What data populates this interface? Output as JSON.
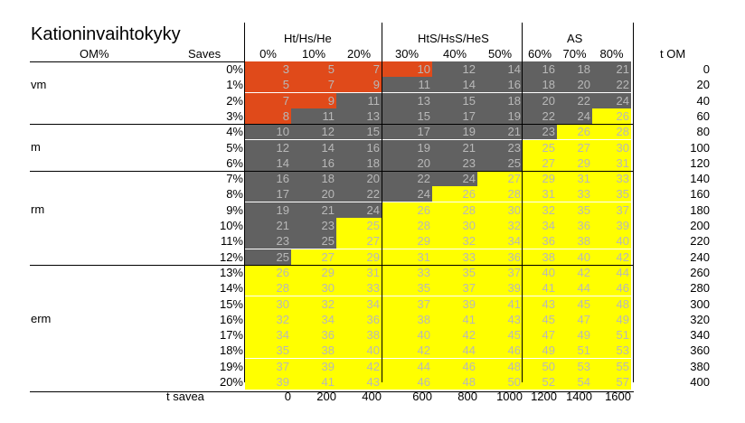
{
  "title": "Kationinvaihtokyky",
  "om_label": "OM%",
  "saves_label": "Saves",
  "t_om_label": "t OM",
  "t_savea_label": "t savea",
  "groups": [
    "Ht/Hs/He",
    "HtS/HsS/HeS",
    "AS"
  ],
  "columns": [
    "0%",
    "10%",
    "20%",
    "30%",
    "40%",
    "50%",
    "60%",
    "70%",
    "80%"
  ],
  "category_labels": [
    "vm",
    "m",
    "rm",
    "erm"
  ],
  "om_percent": [
    "0%",
    "1%",
    "2%",
    "3%",
    "4%",
    "5%",
    "6%",
    "7%",
    "8%",
    "9%",
    "10%",
    "11%",
    "12%",
    "13%",
    "14%",
    "15%",
    "16%",
    "17%",
    "18%",
    "19%",
    "20%"
  ],
  "t_om": [
    "0",
    "20",
    "40",
    "60",
    "80",
    "100",
    "120",
    "140",
    "160",
    "180",
    "200",
    "220",
    "240",
    "260",
    "280",
    "300",
    "320",
    "340",
    "360",
    "380",
    "400"
  ],
  "t_savea": [
    "0",
    "200",
    "400",
    "600",
    "800",
    "1000",
    "1200",
    "1400",
    "1600"
  ],
  "colors": {
    "red": "#e04a1a",
    "gray": "#616161",
    "yellow": "#ffff00",
    "value_text": "#b8b8b8"
  },
  "color_codes_legend": {
    "R": "red",
    "G": "gray",
    "Y": "yellow"
  },
  "values": [
    [
      3,
      5,
      7,
      10,
      12,
      14,
      16,
      18,
      21
    ],
    [
      5,
      7,
      9,
      11,
      14,
      16,
      18,
      20,
      22
    ],
    [
      7,
      9,
      11,
      13,
      15,
      18,
      20,
      22,
      24
    ],
    [
      8,
      11,
      13,
      15,
      17,
      19,
      22,
      24,
      26
    ],
    [
      10,
      12,
      15,
      17,
      19,
      21,
      23,
      26,
      28
    ],
    [
      12,
      14,
      16,
      19,
      21,
      23,
      25,
      27,
      30
    ],
    [
      14,
      16,
      18,
      20,
      23,
      25,
      27,
      29,
      31
    ],
    [
      16,
      18,
      20,
      22,
      24,
      27,
      29,
      31,
      33
    ],
    [
      17,
      20,
      22,
      24,
      26,
      28,
      31,
      33,
      35
    ],
    [
      19,
      21,
      24,
      26,
      28,
      30,
      32,
      35,
      37
    ],
    [
      21,
      23,
      25,
      28,
      30,
      32,
      34,
      36,
      39
    ],
    [
      23,
      25,
      27,
      29,
      32,
      34,
      36,
      38,
      40
    ],
    [
      25,
      27,
      29,
      31,
      33,
      36,
      38,
      40,
      42
    ],
    [
      26,
      29,
      31,
      33,
      35,
      37,
      40,
      42,
      44
    ],
    [
      28,
      30,
      33,
      35,
      37,
      39,
      41,
      44,
      46
    ],
    [
      30,
      32,
      34,
      37,
      39,
      41,
      43,
      45,
      48
    ],
    [
      32,
      34,
      36,
      38,
      41,
      43,
      45,
      47,
      49
    ],
    [
      34,
      36,
      38,
      40,
      42,
      45,
      47,
      49,
      51
    ],
    [
      35,
      38,
      40,
      42,
      44,
      46,
      49,
      51,
      53
    ],
    [
      37,
      39,
      42,
      44,
      46,
      48,
      50,
      53,
      55
    ],
    [
      39,
      41,
      43,
      46,
      48,
      50,
      52,
      54,
      57
    ]
  ],
  "cell_colors": [
    [
      "R",
      "R",
      "R",
      "R",
      "G",
      "G",
      "G",
      "G",
      "G"
    ],
    [
      "R",
      "R",
      "R",
      "G",
      "G",
      "G",
      "G",
      "G",
      "G"
    ],
    [
      "R",
      "R",
      "G",
      "G",
      "G",
      "G",
      "G",
      "G",
      "G"
    ],
    [
      "R",
      "G",
      "G",
      "G",
      "G",
      "G",
      "G",
      "G",
      "Y"
    ],
    [
      "G",
      "G",
      "G",
      "G",
      "G",
      "G",
      "G",
      "Y",
      "Y"
    ],
    [
      "G",
      "G",
      "G",
      "G",
      "G",
      "G",
      "Y",
      "Y",
      "Y"
    ],
    [
      "G",
      "G",
      "G",
      "G",
      "G",
      "G",
      "Y",
      "Y",
      "Y"
    ],
    [
      "G",
      "G",
      "G",
      "G",
      "G",
      "Y",
      "Y",
      "Y",
      "Y"
    ],
    [
      "G",
      "G",
      "G",
      "G",
      "Y",
      "Y",
      "Y",
      "Y",
      "Y"
    ],
    [
      "G",
      "G",
      "G",
      "Y",
      "Y",
      "Y",
      "Y",
      "Y",
      "Y"
    ],
    [
      "G",
      "G",
      "Y",
      "Y",
      "Y",
      "Y",
      "Y",
      "Y",
      "Y"
    ],
    [
      "G",
      "G",
      "Y",
      "Y",
      "Y",
      "Y",
      "Y",
      "Y",
      "Y"
    ],
    [
      "G",
      "Y",
      "Y",
      "Y",
      "Y",
      "Y",
      "Y",
      "Y",
      "Y"
    ],
    [
      "Y",
      "Y",
      "Y",
      "Y",
      "Y",
      "Y",
      "Y",
      "Y",
      "Y"
    ],
    [
      "Y",
      "Y",
      "Y",
      "Y",
      "Y",
      "Y",
      "Y",
      "Y",
      "Y"
    ],
    [
      "Y",
      "Y",
      "Y",
      "Y",
      "Y",
      "Y",
      "Y",
      "Y",
      "Y"
    ],
    [
      "Y",
      "Y",
      "Y",
      "Y",
      "Y",
      "Y",
      "Y",
      "Y",
      "Y"
    ],
    [
      "Y",
      "Y",
      "Y",
      "Y",
      "Y",
      "Y",
      "Y",
      "Y",
      "Y"
    ],
    [
      "Y",
      "Y",
      "Y",
      "Y",
      "Y",
      "Y",
      "Y",
      "Y",
      "Y"
    ],
    [
      "Y",
      "Y",
      "Y",
      "Y",
      "Y",
      "Y",
      "Y",
      "Y",
      "Y"
    ],
    [
      "Y",
      "Y",
      "Y",
      "Y",
      "Y",
      "Y",
      "Y",
      "Y",
      "Y"
    ]
  ]
}
